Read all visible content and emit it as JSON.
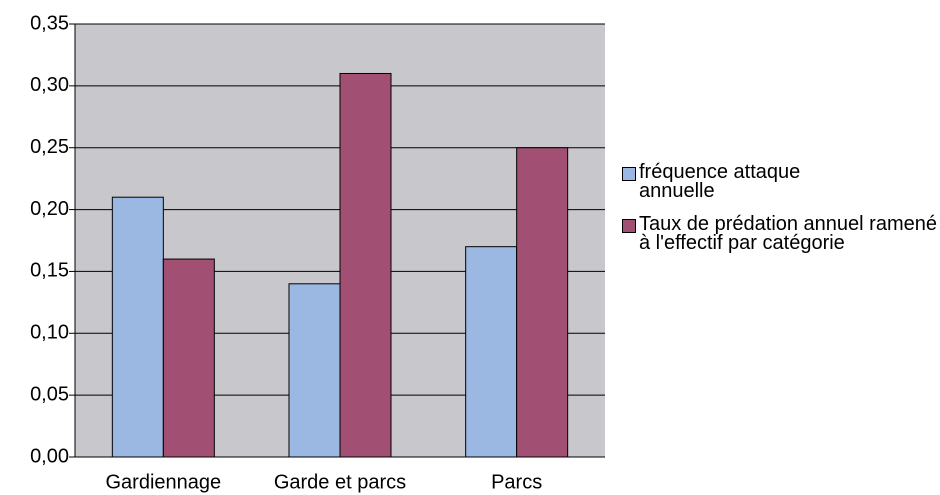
{
  "chart_data": {
    "type": "bar",
    "categories": [
      "Gardiennage",
      "Garde et parcs",
      "Parcs"
    ],
    "series": [
      {
        "name": "fréquence attaque annuelle",
        "color": "#9bb8e2",
        "values": [
          0.21,
          0.14,
          0.17
        ]
      },
      {
        "name": "Taux de prédation annuel ramené à l'effectif par catégorie",
        "color": "#a14f72",
        "values": [
          0.16,
          0.31,
          0.25
        ]
      }
    ],
    "ylim": [
      0,
      0.35
    ],
    "yticks": [
      {
        "value": 0,
        "label": "0,00"
      },
      {
        "value": 0.05,
        "label": "0,05"
      },
      {
        "value": 0.1,
        "label": "0,10"
      },
      {
        "value": 0.15,
        "label": "0,15"
      },
      {
        "value": 0.2,
        "label": "0,20"
      },
      {
        "value": 0.25,
        "label": "0,25"
      },
      {
        "value": 0.3,
        "label": "0,30"
      },
      {
        "value": 0.35,
        "label": "0,35"
      }
    ],
    "grid": true,
    "legend": "right",
    "plot_background": "#c8c8cc"
  }
}
